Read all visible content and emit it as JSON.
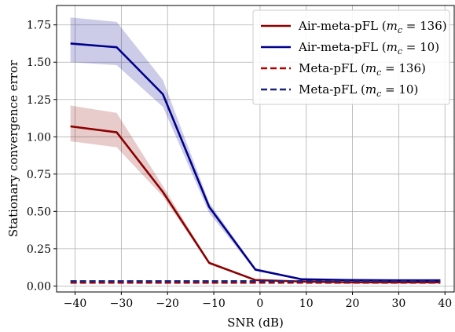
{
  "chart_data": {
    "type": "line",
    "title": "",
    "xlabel": "SNR (dB)",
    "ylabel": "Stationary convergence error",
    "xlim": [
      -44,
      42
    ],
    "ylim": [
      -0.04,
      1.88
    ],
    "xticks": [
      -40,
      -30,
      -20,
      -10,
      0,
      10,
      20,
      30,
      40
    ],
    "yticks": [
      0.0,
      0.25,
      0.5,
      0.75,
      1.0,
      1.25,
      1.5,
      1.75
    ],
    "xtick_labels": [
      "−40",
      "−30",
      "−20",
      "−10",
      "0",
      "10",
      "20",
      "30",
      "40"
    ],
    "ytick_labels": [
      "0.00",
      "0.25",
      "0.50",
      "0.75",
      "1.00",
      "1.25",
      "1.50",
      "1.75"
    ],
    "grid": true,
    "legend_position": "top-right",
    "x": [
      -41,
      -31,
      -21,
      -11,
      -1,
      9,
      19,
      29,
      39
    ],
    "series": [
      {
        "name": "Air-meta-pFL (m_c = 136)",
        "label_main": "Air-meta-pFL (",
        "label_sym": "m",
        "label_sub": "c",
        "label_val": " = 136)",
        "color": "#8b0000",
        "style": "solid",
        "values": [
          1.07,
          1.03,
          0.63,
          0.155,
          0.04,
          0.03,
          0.025,
          0.025,
          0.025
        ],
        "band_lower": [
          0.97,
          0.93,
          0.6,
          0.145,
          0.035,
          0.028,
          0.023,
          0.023,
          0.023
        ],
        "band_upper": [
          1.21,
          1.16,
          0.67,
          0.165,
          0.045,
          0.032,
          0.027,
          0.027,
          0.027
        ]
      },
      {
        "name": "Air-meta-pFL (m_c = 10)",
        "label_main": "Air-meta-pFL (",
        "label_sym": "m",
        "label_sub": "c",
        "label_val": " = 10)",
        "color": "#00008b",
        "style": "solid",
        "values": [
          1.625,
          1.6,
          1.285,
          0.53,
          0.11,
          0.045,
          0.04,
          0.038,
          0.038
        ],
        "band_lower": [
          1.5,
          1.48,
          1.2,
          0.49,
          0.1,
          0.042,
          0.037,
          0.035,
          0.035
        ],
        "band_upper": [
          1.8,
          1.77,
          1.38,
          0.56,
          0.12,
          0.048,
          0.043,
          0.041,
          0.041
        ]
      },
      {
        "name": "Meta-pFL (m_c = 136)",
        "label_main": "Meta-pFL (",
        "label_sym": "m",
        "label_sub": "c",
        "label_val": " = 136)",
        "color": "#b00000",
        "style": "dashed",
        "values": [
          0.022,
          0.022,
          0.022,
          0.022,
          0.022,
          0.022,
          0.022,
          0.022,
          0.022
        ]
      },
      {
        "name": "Meta-pFL (m_c = 10)",
        "label_main": "Meta-pFL (",
        "label_sym": "m",
        "label_sub": "c",
        "label_val": " = 10)",
        "color": "#1a237e",
        "style": "dashed",
        "values": [
          0.032,
          0.032,
          0.032,
          0.032,
          0.032,
          0.032,
          0.032,
          0.032,
          0.032
        ]
      }
    ]
  }
}
